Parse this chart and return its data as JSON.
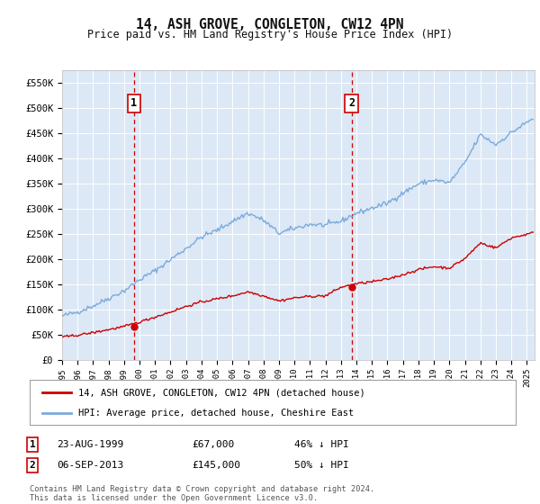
{
  "title": "14, ASH GROVE, CONGLETON, CW12 4PN",
  "subtitle": "Price paid vs. HM Land Registry's House Price Index (HPI)",
  "background_color": "#ffffff",
  "plot_bg_color": "#dce8f5",
  "ylim": [
    0,
    575000
  ],
  "yticks": [
    0,
    50000,
    100000,
    150000,
    200000,
    250000,
    300000,
    350000,
    400000,
    450000,
    500000,
    550000
  ],
  "ytick_labels": [
    "£0",
    "£50K",
    "£100K",
    "£150K",
    "£200K",
    "£250K",
    "£300K",
    "£350K",
    "£400K",
    "£450K",
    "£500K",
    "£550K"
  ],
  "xmin_year": 1995.0,
  "xmax_year": 2025.5,
  "xtick_years": [
    1995,
    1996,
    1997,
    1998,
    1999,
    2000,
    2001,
    2002,
    2003,
    2004,
    2005,
    2006,
    2007,
    2008,
    2009,
    2010,
    2011,
    2012,
    2013,
    2014,
    2015,
    2016,
    2017,
    2018,
    2019,
    2020,
    2021,
    2022,
    2023,
    2024,
    2025
  ],
  "sale1_year": 1999.64,
  "sale1_price": 67000,
  "sale1_label": "1",
  "sale2_year": 2013.68,
  "sale2_price": 145000,
  "sale2_label": "2",
  "sale_color": "#cc0000",
  "hpi_color": "#7aaadd",
  "legend_sale_label": "14, ASH GROVE, CONGLETON, CW12 4PN (detached house)",
  "legend_hpi_label": "HPI: Average price, detached house, Cheshire East",
  "annotation1_date": "23-AUG-1999",
  "annotation1_price": "£67,000",
  "annotation1_hpi": "46% ↓ HPI",
  "annotation2_date": "06-SEP-2013",
  "annotation2_price": "£145,000",
  "annotation2_hpi": "50% ↓ HPI",
  "footer": "Contains HM Land Registry data © Crown copyright and database right 2024.\nThis data is licensed under the Open Government Licence v3.0."
}
